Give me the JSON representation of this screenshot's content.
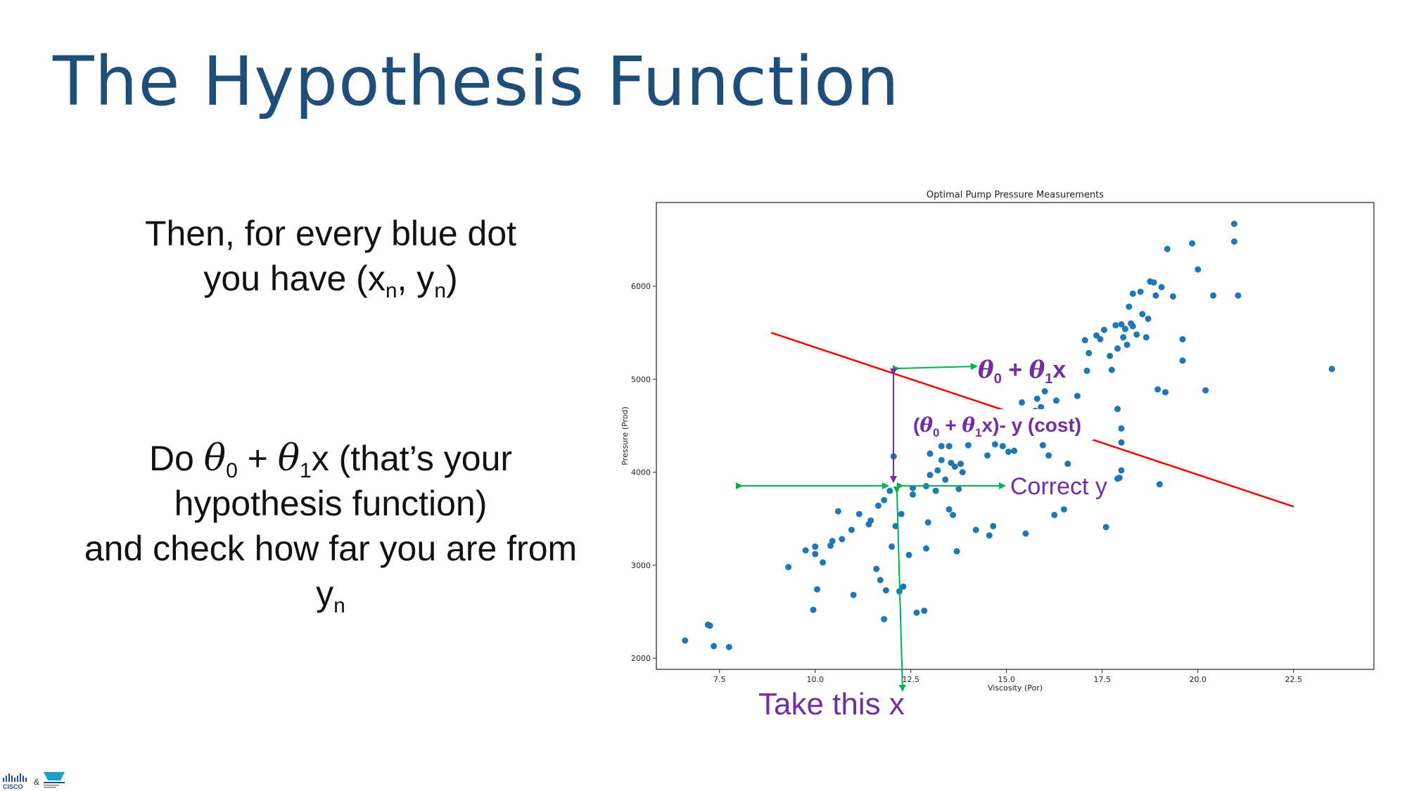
{
  "slide": {
    "title": "The Hypothesis Function",
    "para1_line1": "Then, for every blue dot",
    "para1_line2_pre": "you have (x",
    "sub_n": "n",
    "comma": ", y",
    "close_paren": ")",
    "para2_do": "Do ",
    "theta": "θ",
    "sub_0": "0",
    "sub_1": "1",
    "plus": " + ",
    "para2_rest1": "x (that’s your",
    "para2_line2": "hypothesis function)",
    "para2_line3": "and check how far you are from",
    "para2_y": "y"
  },
  "annotations": {
    "hyp_label_bold": " + ",
    "hyp_x": "x",
    "cost_open": "(",
    "cost_close": "x)- y (cost)",
    "correct_y": "Correct y",
    "take_x": "Take this x",
    "colors": {
      "purple": "#7030a0",
      "green": "#00b050",
      "red": "#ff0000",
      "dot": "#1f77b4"
    }
  },
  "chart_data": {
    "type": "scatter",
    "title": "Optimal Pump Pressure Measurements",
    "xlabel": "Viscosity (Por)",
    "ylabel": "Pressure (Prod)",
    "xlim": [
      5.85,
      24.6
    ],
    "ylim": [
      1880,
      6900
    ],
    "xticks": [
      7.5,
      10.0,
      12.5,
      15.0,
      17.5,
      20.0,
      22.5
    ],
    "xtick_labels": [
      "7.5",
      "10.0",
      "12.5",
      "15.0",
      "17.5",
      "20.0",
      "22.5"
    ],
    "yticks": [
      2000,
      3000,
      4000,
      5000,
      6000
    ],
    "ytick_labels": [
      "2000",
      "3000",
      "4000",
      "5000",
      "6000"
    ],
    "hypothesis_line": {
      "x": [
        8.85,
        22.5
      ],
      "y": [
        5500,
        3630
      ]
    },
    "points": [
      [
        6.6,
        2190
      ],
      [
        7.2,
        2360
      ],
      [
        7.25,
        2350
      ],
      [
        7.35,
        2130
      ],
      [
        7.75,
        2120
      ],
      [
        9.3,
        2980
      ],
      [
        9.75,
        3160
      ],
      [
        10.0,
        3120
      ],
      [
        10.0,
        3200
      ],
      [
        10.05,
        2740
      ],
      [
        9.95,
        2520
      ],
      [
        10.2,
        3030
      ],
      [
        10.4,
        3210
      ],
      [
        10.45,
        3260
      ],
      [
        10.6,
        3580
      ],
      [
        10.7,
        3280
      ],
      [
        11.0,
        2680
      ],
      [
        10.95,
        3380
      ],
      [
        11.15,
        3550
      ],
      [
        11.4,
        3440
      ],
      [
        11.45,
        3480
      ],
      [
        11.6,
        2960
      ],
      [
        11.65,
        3640
      ],
      [
        11.7,
        2840
      ],
      [
        11.8,
        3700
      ],
      [
        11.8,
        2420
      ],
      [
        11.85,
        2730
      ],
      [
        11.95,
        3800
      ],
      [
        12.0,
        3200
      ],
      [
        12.05,
        4170
      ],
      [
        12.1,
        3420
      ],
      [
        12.2,
        2720
      ],
      [
        12.25,
        3550
      ],
      [
        12.3,
        2770
      ],
      [
        12.45,
        3110
      ],
      [
        12.55,
        3830
      ],
      [
        12.55,
        3760
      ],
      [
        12.65,
        2490
      ],
      [
        12.85,
        2510
      ],
      [
        12.9,
        3180
      ],
      [
        12.9,
        3850
      ],
      [
        12.95,
        3460
      ],
      [
        13.0,
        4200
      ],
      [
        13.0,
        3970
      ],
      [
        13.15,
        3800
      ],
      [
        13.2,
        4020
      ],
      [
        13.3,
        4280
      ],
      [
        13.3,
        4130
      ],
      [
        13.4,
        3920
      ],
      [
        13.5,
        3600
      ],
      [
        13.5,
        4280
      ],
      [
        13.55,
        4100
      ],
      [
        13.6,
        3540
      ],
      [
        13.65,
        4060
      ],
      [
        13.7,
        3150
      ],
      [
        13.75,
        3820
      ],
      [
        13.8,
        4090
      ],
      [
        13.85,
        4000
      ],
      [
        14.0,
        4290
      ],
      [
        14.2,
        3380
      ],
      [
        14.5,
        4180
      ],
      [
        14.55,
        3320
      ],
      [
        14.65,
        3420
      ],
      [
        14.7,
        4300
      ],
      [
        14.9,
        4380
      ],
      [
        15.0,
        4620
      ],
      [
        15.05,
        4220
      ],
      [
        15.2,
        4230
      ],
      [
        15.4,
        4750
      ],
      [
        15.5,
        3340
      ],
      [
        15.6,
        4520
      ],
      [
        15.7,
        4440
      ],
      [
        15.75,
        4660
      ],
      [
        15.8,
        4790
      ],
      [
        15.9,
        4700
      ],
      [
        15.95,
        4290
      ],
      [
        16.0,
        4870
      ],
      [
        16.1,
        4180
      ],
      [
        16.25,
        3540
      ],
      [
        16.3,
        4770
      ],
      [
        16.6,
        4090
      ],
      [
        16.85,
        4820
      ],
      [
        17.05,
        5420
      ],
      [
        17.1,
        5090
      ],
      [
        17.15,
        5280
      ],
      [
        17.35,
        5470
      ],
      [
        17.45,
        5430
      ],
      [
        17.55,
        5530
      ],
      [
        17.6,
        3410
      ],
      [
        17.7,
        5250
      ],
      [
        17.75,
        5100
      ],
      [
        17.85,
        5580
      ],
      [
        17.9,
        5330
      ],
      [
        17.95,
        3940
      ],
      [
        18.0,
        5590
      ],
      [
        18.0,
        4470
      ],
      [
        18.05,
        5450
      ],
      [
        18.1,
        5540
      ],
      [
        18.15,
        5370
      ],
      [
        18.2,
        5780
      ],
      [
        18.25,
        5600
      ],
      [
        18.3,
        5570
      ],
      [
        18.3,
        5920
      ],
      [
        18.4,
        5480
      ],
      [
        18.5,
        5940
      ],
      [
        18.55,
        5700
      ],
      [
        18.65,
        5450
      ],
      [
        18.7,
        5650
      ],
      [
        18.75,
        6050
      ],
      [
        18.85,
        6040
      ],
      [
        18.9,
        5900
      ],
      [
        18.95,
        4890
      ],
      [
        19.0,
        3870
      ],
      [
        19.05,
        5990
      ],
      [
        19.15,
        4860
      ],
      [
        19.2,
        6400
      ],
      [
        19.35,
        5890
      ],
      [
        19.6,
        5430
      ],
      [
        19.6,
        5200
      ],
      [
        19.85,
        6460
      ],
      [
        20.0,
        6180
      ],
      [
        20.2,
        4880
      ],
      [
        20.4,
        5900
      ],
      [
        20.95,
        6480
      ],
      [
        20.95,
        6670
      ],
      [
        21.05,
        5900
      ],
      [
        18.0,
        4320
      ],
      [
        17.9,
        4680
      ],
      [
        23.5,
        5110
      ],
      [
        17.9,
        3930
      ],
      [
        18.0,
        4020
      ],
      [
        16.5,
        3600
      ],
      [
        15.3,
        4500
      ],
      [
        14.9,
        4280
      ]
    ]
  }
}
